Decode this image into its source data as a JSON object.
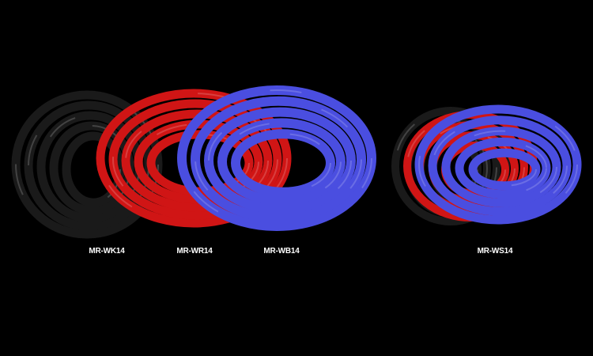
{
  "products": [
    {
      "label": "MR-WK14",
      "color": "#1a1a1a"
    },
    {
      "label": "MR-WR14",
      "color": "#d01515"
    },
    {
      "label": "MR-WB14",
      "color": "#4a4ee0"
    },
    {
      "label": "MR-WS14",
      "colors": [
        "#1a1a1a",
        "#d01515",
        "#4a4ee0"
      ]
    }
  ]
}
